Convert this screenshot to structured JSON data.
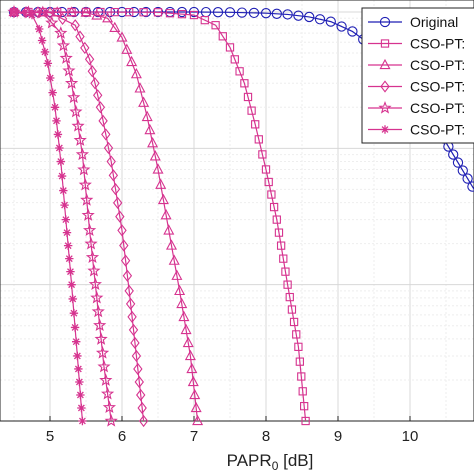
{
  "chart_data": {
    "type": "line",
    "xlabel": "PAPR",
    "xlabel_sub": "0",
    "xlabel_unit": " [dB]",
    "xlim": [
      4.45,
      11.1
    ],
    "xticks": [
      5,
      6,
      7,
      8,
      9,
      10
    ],
    "xtick_labels": [
      "5",
      "6",
      "7",
      "8",
      "9",
      "10"
    ],
    "ylim": [
      0.001,
      1
    ],
    "yscale": "log",
    "grid": true,
    "legend_position": "top-right",
    "colors": {
      "original": "#1f1fb4",
      "cso": "#d6338f"
    },
    "series": [
      {
        "name": "Original",
        "marker": "circle",
        "color": "#1f1fb4",
        "x": [
          4.5,
          5.0,
          5.5,
          6.0,
          6.5,
          7.0,
          7.5,
          8.0,
          8.3,
          8.6,
          8.9,
          9.2,
          9.5,
          9.8,
          10.0,
          10.2,
          10.4,
          10.6,
          10.8,
          11.0
        ],
        "y": [
          1.0,
          1.0,
          1.0,
          1.0,
          1.0,
          1.0,
          0.995,
          0.98,
          0.96,
          0.92,
          0.85,
          0.72,
          0.55,
          0.38,
          0.28,
          0.2,
          0.135,
          0.09,
          0.06,
          0.04
        ]
      },
      {
        "name": "CSO-PT:",
        "marker": "square",
        "color": "#d6338f",
        "x": [
          4.5,
          5.5,
          6.5,
          7.0,
          7.3,
          7.5,
          7.7,
          7.85,
          8.0,
          8.15,
          8.3,
          8.45,
          8.55
        ],
        "y": [
          1.0,
          1.0,
          0.995,
          0.95,
          0.8,
          0.55,
          0.3,
          0.15,
          0.07,
          0.03,
          0.01,
          0.0035,
          0.001
        ]
      },
      {
        "name": "CSO-PT:",
        "marker": "triangle",
        "color": "#d6338f",
        "x": [
          4.5,
          5.5,
          5.8,
          6.0,
          6.2,
          6.35,
          6.5,
          6.65,
          6.8,
          6.95,
          7.05
        ],
        "y": [
          1.0,
          0.99,
          0.9,
          0.65,
          0.35,
          0.17,
          0.07,
          0.025,
          0.009,
          0.003,
          0.001
        ]
      },
      {
        "name": "CSO-PT:",
        "marker": "diamond",
        "color": "#d6338f",
        "x": [
          4.5,
          5.0,
          5.35,
          5.55,
          5.7,
          5.85,
          6.0,
          6.1,
          6.2,
          6.3
        ],
        "y": [
          1.0,
          0.99,
          0.8,
          0.45,
          0.2,
          0.08,
          0.025,
          0.009,
          0.003,
          0.001
        ]
      },
      {
        "name": "CSO-PT:",
        "marker": "star",
        "color": "#d6338f",
        "x": [
          4.5,
          4.9,
          5.15,
          5.3,
          5.45,
          5.55,
          5.65,
          5.75,
          5.85
        ],
        "y": [
          1.0,
          0.99,
          0.7,
          0.3,
          0.09,
          0.025,
          0.008,
          0.0025,
          0.001
        ]
      },
      {
        "name": "CSO-PT:",
        "marker": "asterisk",
        "color": "#d6338f",
        "x": [
          4.5,
          4.75,
          4.85,
          4.97,
          5.07,
          5.15,
          5.22,
          5.3,
          5.38,
          5.45
        ],
        "y": [
          1.0,
          0.95,
          0.75,
          0.42,
          0.2,
          0.08,
          0.03,
          0.01,
          0.003,
          0.001
        ]
      }
    ]
  }
}
